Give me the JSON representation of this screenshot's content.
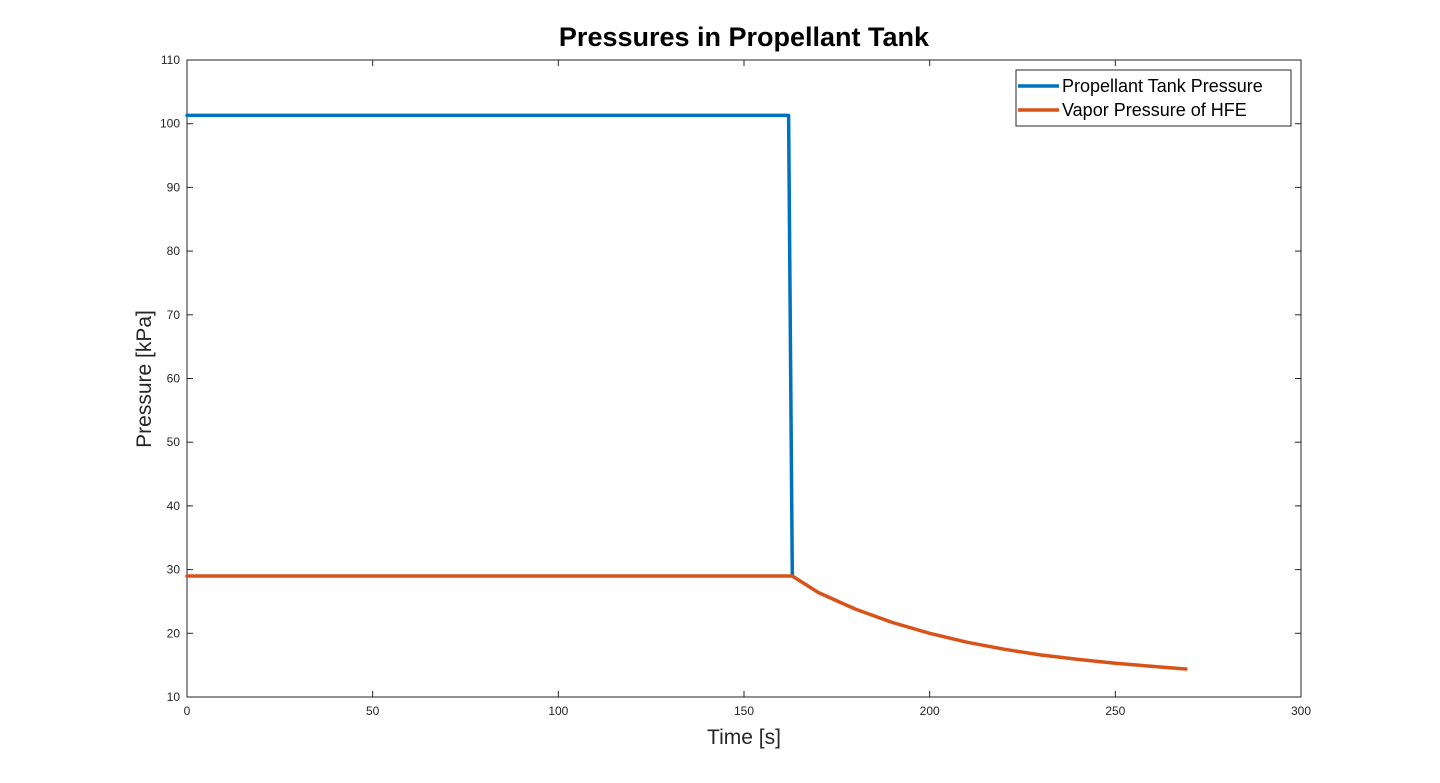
{
  "chart_data": {
    "type": "line",
    "title": "Pressures in Propellant Tank",
    "xlabel": "Time [s]",
    "ylabel": "Pressure [kPa]",
    "xlim": [
      0,
      300
    ],
    "ylim": [
      10,
      110
    ],
    "xticks": [
      0,
      50,
      100,
      150,
      200,
      250,
      300
    ],
    "yticks": [
      10,
      20,
      30,
      40,
      50,
      60,
      70,
      80,
      90,
      100,
      110
    ],
    "grid": false,
    "legend_position": "top-right",
    "series": [
      {
        "name": "Propellant Tank Pressure",
        "color": "#0072BD",
        "x": [
          0,
          162,
          163
        ],
        "y": [
          101.3,
          101.3,
          29
        ]
      },
      {
        "name": "Vapor Pressure of HFE",
        "color": "#D95319",
        "x": [
          0,
          162,
          163,
          170,
          180,
          190,
          200,
          210,
          220,
          230,
          240,
          250,
          260,
          269
        ],
        "y": [
          29,
          29,
          29,
          26.4,
          23.8,
          21.7,
          20.0,
          18.6,
          17.5,
          16.6,
          15.9,
          15.3,
          14.8,
          14.4
        ]
      }
    ]
  }
}
